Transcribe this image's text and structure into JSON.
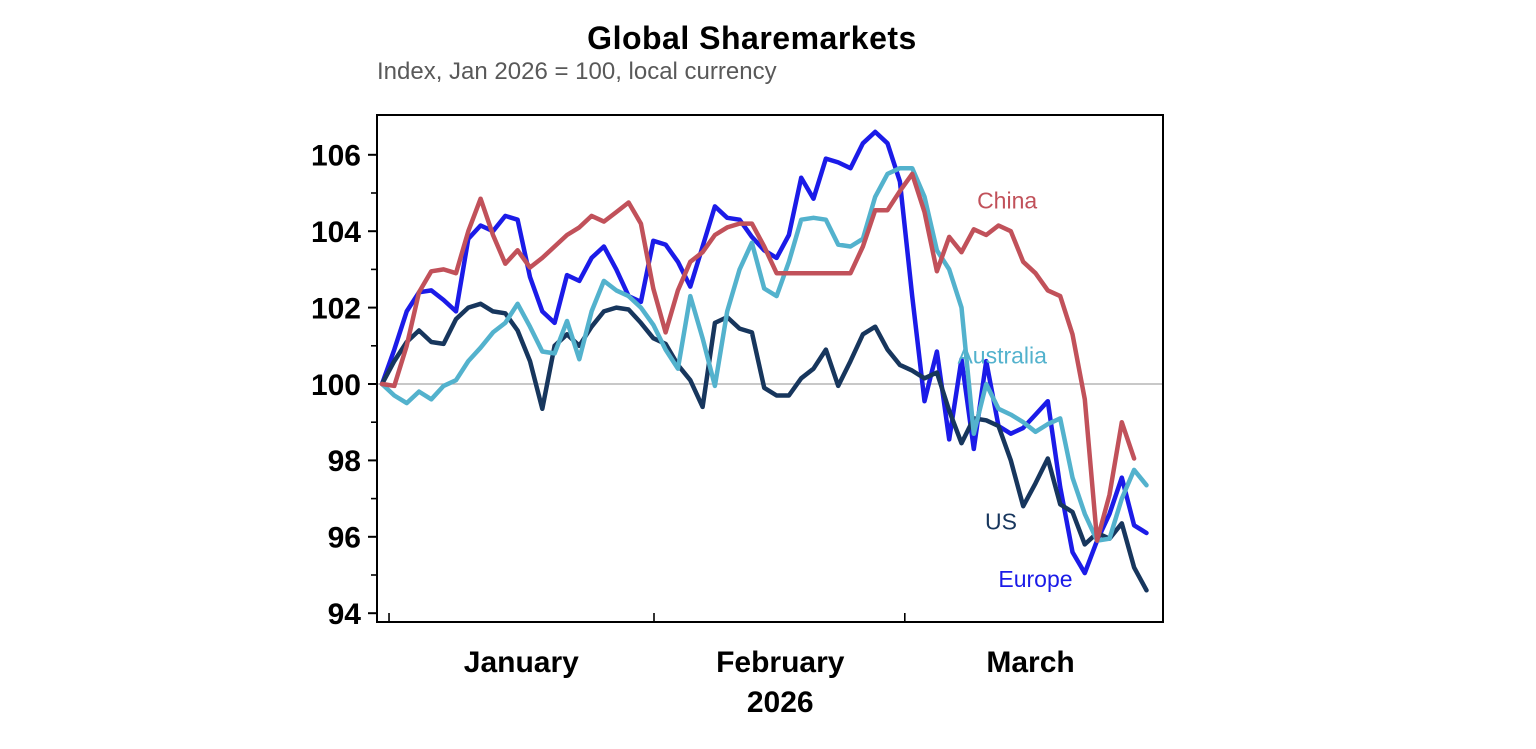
{
  "header": {
    "title": "Global Sharemarkets",
    "subtitle": "Index, Jan 2026 = 100, local currency"
  },
  "chart_data": {
    "type": "line",
    "title": "Global Sharemarkets",
    "subtitle": "Index, Jan 2026 = 100, local currency",
    "grid": "baseline-only",
    "legend_position": "inline-labels",
    "x_axis": {
      "label": "",
      "unit": "trading days, Jan-Mar 2026",
      "year_label": "2026",
      "year_label_day": 32.3,
      "month_ticks": [
        {
          "label": "January",
          "tick_day": 0.57,
          "label_day": 11.3
        },
        {
          "label": "February",
          "tick_day": 22.06,
          "label_day": 32.3
        },
        {
          "label": "March",
          "tick_day": 42.4,
          "label_day": 52.6
        }
      ]
    },
    "y_axis": {
      "label": "",
      "min": 94,
      "max": 106,
      "major_step": 2,
      "minor_step": 2,
      "baseline_value": 100,
      "baseline_color": "#a6a6a6",
      "tick_labels": [
        "94",
        "96",
        "98",
        "100",
        "102",
        "104",
        "106"
      ]
    },
    "series": [
      {
        "name": "Europe",
        "color": "#1b1be8",
        "label_pos": {
          "day": 53.0,
          "value": 94.9
        },
        "values": [
          100,
          100.9,
          101.9,
          102.4,
          102.45,
          102.2,
          101.9,
          103.8,
          104.15,
          104.0,
          104.4,
          104.3,
          102.8,
          101.9,
          101.6,
          102.85,
          102.7,
          103.3,
          103.6,
          103.0,
          102.3,
          102.15,
          103.75,
          103.65,
          103.2,
          102.55,
          103.6,
          104.65,
          104.35,
          104.3,
          103.85,
          103.5,
          103.3,
          103.9,
          105.4,
          104.85,
          105.9,
          105.8,
          105.65,
          106.3,
          106.6,
          106.3,
          105.3,
          102.3,
          99.55,
          100.85,
          98.55,
          100.65,
          98.3,
          100.6,
          98.9,
          98.7,
          98.85,
          99.2,
          99.55,
          97.3,
          95.6,
          95.05,
          95.9,
          96.6,
          97.55,
          96.3,
          96.1
        ]
      },
      {
        "name": "US",
        "color": "#17365d",
        "label_pos": {
          "day": 50.2,
          "value": 96.4
        },
        "values": [
          100,
          100.6,
          101.1,
          101.4,
          101.1,
          101.05,
          101.7,
          102.0,
          102.1,
          101.9,
          101.85,
          101.4,
          100.6,
          99.35,
          101.0,
          101.3,
          101.0,
          101.5,
          101.9,
          102.0,
          101.95,
          101.6,
          101.2,
          101.05,
          100.5,
          100.1,
          99.4,
          101.6,
          101.75,
          101.45,
          101.35,
          99.9,
          99.7,
          99.7,
          100.15,
          100.4,
          100.9,
          99.95,
          100.6,
          101.3,
          101.5,
          100.9,
          100.5,
          100.35,
          100.15,
          100.3,
          99.3,
          98.45,
          99.1,
          99.05,
          98.9,
          98.0,
          96.8,
          97.4,
          98.05,
          96.85,
          96.65,
          95.8,
          96.1,
          95.95,
          96.35,
          95.2,
          94.6
        ]
      },
      {
        "name": "Australia",
        "color": "#53b2cd",
        "label_pos": {
          "day": 50.3,
          "value": 100.75
        },
        "values": [
          100,
          99.7,
          99.5,
          99.8,
          99.6,
          99.95,
          100.1,
          100.6,
          100.95,
          101.35,
          101.6,
          102.1,
          101.5,
          100.85,
          100.8,
          101.65,
          100.65,
          101.9,
          102.7,
          102.45,
          102.3,
          102.0,
          101.55,
          100.9,
          100.4,
          102.3,
          101.2,
          99.95,
          101.9,
          103.0,
          103.7,
          102.5,
          102.3,
          103.2,
          104.3,
          104.35,
          104.3,
          103.65,
          103.6,
          103.8,
          104.9,
          105.5,
          105.65,
          105.65,
          104.9,
          103.5,
          103.0,
          102.0,
          98.7,
          100.0,
          99.35,
          99.2,
          99.0,
          98.75,
          98.95,
          99.1,
          97.55,
          96.6,
          95.9,
          95.95,
          97.0,
          97.75,
          97.35
        ]
      },
      {
        "name": "China",
        "color": "#c1515a",
        "label_pos": {
          "day": 50.7,
          "value": 104.8
        },
        "values": [
          100,
          99.95,
          101.0,
          102.4,
          102.95,
          103.0,
          102.9,
          104.0,
          104.85,
          103.9,
          103.15,
          103.5,
          103.05,
          103.3,
          103.6,
          103.9,
          104.1,
          104.4,
          104.25,
          104.5,
          104.75,
          104.2,
          102.5,
          101.35,
          102.45,
          103.2,
          103.45,
          103.9,
          104.1,
          104.2,
          104.2,
          103.6,
          102.9,
          102.9,
          102.9,
          102.9,
          102.9,
          102.9,
          102.9,
          103.6,
          104.55,
          104.55,
          105.05,
          105.5,
          104.5,
          102.95,
          103.85,
          103.45,
          104.05,
          103.9,
          104.15,
          104.0,
          103.2,
          102.9,
          102.45,
          102.3,
          101.3,
          99.6,
          95.9,
          97.1,
          99.0,
          98.05
        ]
      }
    ]
  }
}
